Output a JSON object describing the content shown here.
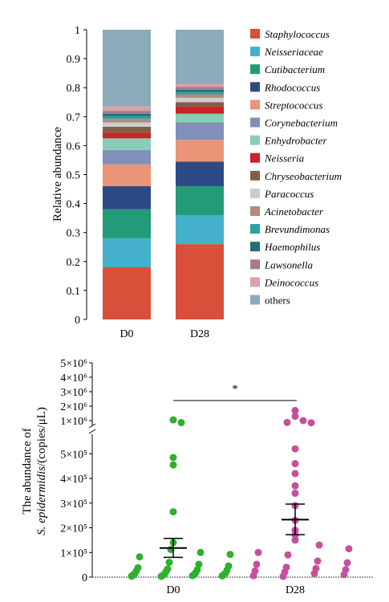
{
  "chart_data": [
    {
      "type": "bar",
      "stacked": true,
      "categories": [
        "D0",
        "D28"
      ],
      "ylabel": "Relative abundance",
      "ylim": [
        0,
        1
      ],
      "yticks": [
        "0",
        "0.1",
        "0.2",
        "0.3",
        "0.4",
        "0.5",
        "0.6",
        "0.7",
        "0.8",
        "0.9",
        "1"
      ],
      "legend_position": "right",
      "series": [
        {
          "name": "Staphylococcus",
          "color": "#d94f3a",
          "values": [
            0.18,
            0.26
          ]
        },
        {
          "name": "Neisseriaceae",
          "color": "#45b0cc",
          "values": [
            0.1,
            0.1
          ]
        },
        {
          "name": "Cutibacterium",
          "color": "#239b78",
          "values": [
            0.1,
            0.1
          ]
        },
        {
          "name": "Rhodococcus",
          "color": "#2e4a85",
          "values": [
            0.08,
            0.085
          ]
        },
        {
          "name": "Streptococcus",
          "color": "#ea9478",
          "values": [
            0.075,
            0.075
          ]
        },
        {
          "name": "Corynebacterium",
          "color": "#8190b8",
          "values": [
            0.05,
            0.06
          ]
        },
        {
          "name": "Enhydrobacter",
          "color": "#88cdb5",
          "values": [
            0.04,
            0.03
          ]
        },
        {
          "name": "Neisseria",
          "color": "#c8242a",
          "values": [
            0.02,
            0.025
          ]
        },
        {
          "name": "Chryseobacterium",
          "color": "#7d6045",
          "values": [
            0.02,
            0.015
          ]
        },
        {
          "name": "Paracoccus",
          "color": "#cccccc",
          "values": [
            0.015,
            0.015
          ]
        },
        {
          "name": "Acinetobacter",
          "color": "#b8877f",
          "values": [
            0.012,
            0.012
          ]
        },
        {
          "name": "Brevundimonas",
          "color": "#2aa2a2",
          "values": [
            0.01,
            0.008
          ]
        },
        {
          "name": "Haemophilus",
          "color": "#206d77",
          "values": [
            0.008,
            0.008
          ]
        },
        {
          "name": "Lawsonella",
          "color": "#a67a8c",
          "values": [
            0.01,
            0.01
          ]
        },
        {
          "name": "Deinococcus",
          "color": "#d9a2a6",
          "values": [
            0.015,
            0.01
          ]
        },
        {
          "name": "others",
          "color": "#8cabba",
          "values": [
            0.265,
            0.187
          ]
        }
      ]
    },
    {
      "type": "scatter",
      "categories": [
        "D0",
        "D28"
      ],
      "ylabel_prefix": "The abundance of",
      "ylabel_italic": "S. epidermidis",
      "ylabel_suffix": "/(copies/μL)",
      "axis_break": true,
      "ylim_lower": [
        0,
        550000
      ],
      "ylim_upper": [
        1000000,
        5000000
      ],
      "yticks": [
        {
          "value": 0,
          "label": "0"
        },
        {
          "value": 100000,
          "label": "1×10⁵"
        },
        {
          "value": 200000,
          "label": "2×10⁵"
        },
        {
          "value": 300000,
          "label": "3×10⁵"
        },
        {
          "value": 400000,
          "label": "4×10⁵"
        },
        {
          "value": 500000,
          "label": "5×10⁵"
        },
        {
          "value": 1000000,
          "label": "1×10⁶"
        },
        {
          "value": 2000000,
          "label": "2×10⁶"
        },
        {
          "value": 3000000,
          "label": "3×10⁶"
        },
        {
          "value": 4000000,
          "label": "4×10⁶"
        },
        {
          "value": 5000000,
          "label": "5×10⁶"
        }
      ],
      "significance": "*",
      "series": [
        {
          "name": "D0",
          "color": "#2fb02f",
          "mean": 118000,
          "sem_low": 80000,
          "sem_high": 157000,
          "points": [
            1050000,
            860000,
            485000,
            455000,
            265000,
            140000,
            112000,
            100000,
            92000,
            82000,
            60000,
            52000,
            45000,
            38000,
            33000,
            30000,
            28000,
            25000,
            22000,
            18000,
            16000,
            14000,
            12000,
            10000,
            9000,
            8000,
            7000,
            6000,
            5000,
            4000,
            3000
          ]
        },
        {
          "name": "D28",
          "color": "#c4509c",
          "mean": 233000,
          "sem_low": 172000,
          "sem_high": 296000,
          "points": [
            1700000,
            1300000,
            1000000,
            870000,
            850000,
            520000,
            460000,
            420000,
            370000,
            340000,
            290000,
            230000,
            190000,
            170000,
            150000,
            130000,
            115000,
            100000,
            90000,
            65000,
            58000,
            52000,
            40000,
            35000,
            30000,
            25000,
            20000,
            15000,
            10000,
            6000,
            3000
          ]
        }
      ]
    }
  ]
}
